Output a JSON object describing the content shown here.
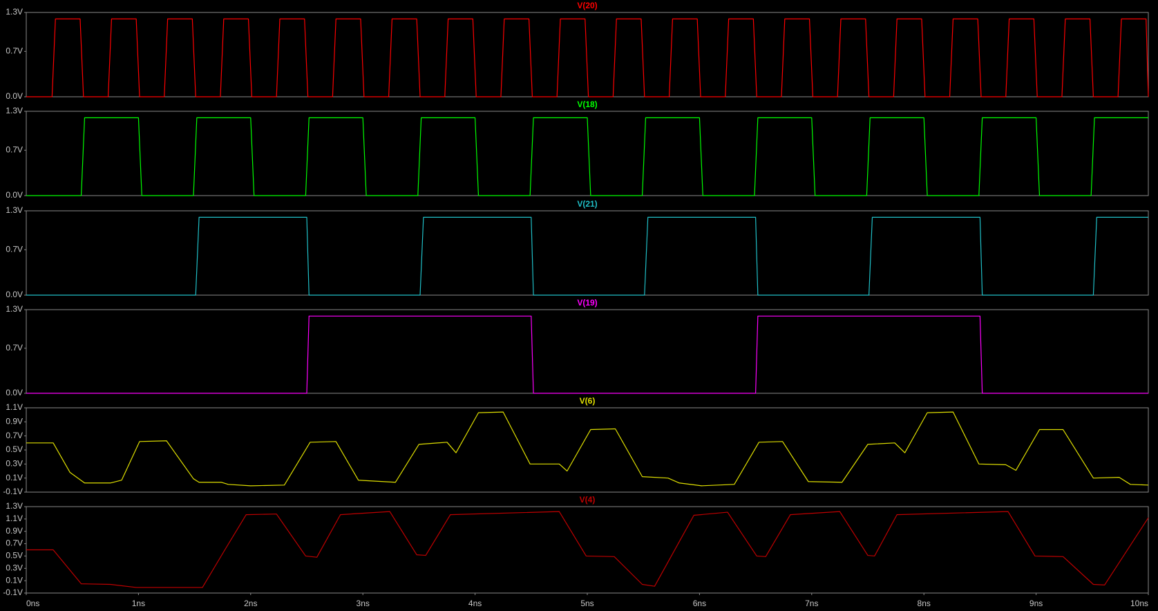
{
  "chart_data": [
    {
      "type": "line",
      "xlim": [
        0,
        10
      ],
      "ylim": [
        0,
        1.3
      ],
      "yticks": [
        {
          "value": 0,
          "label": "0.0V"
        },
        {
          "value": 0.7,
          "label": "0.7V"
        },
        {
          "value": 1.3,
          "label": "1.3V"
        }
      ],
      "x": [
        0,
        0.23,
        0.26,
        0.48,
        0.51,
        0.73,
        0.76,
        0.98,
        1.01,
        1.23,
        1.26,
        1.48,
        1.51,
        1.73,
        1.76,
        1.98,
        2.01,
        2.23,
        2.26,
        2.48,
        2.51,
        2.73,
        2.76,
        2.98,
        3.01,
        3.23,
        3.26,
        3.48,
        3.51,
        3.73,
        3.76,
        3.98,
        4.01,
        4.23,
        4.26,
        4.48,
        4.51,
        4.73,
        4.76,
        4.98,
        5.01,
        5.23,
        5.26,
        5.48,
        5.51,
        5.73,
        5.76,
        5.98,
        6.01,
        6.23,
        6.26,
        6.48,
        6.51,
        6.73,
        6.76,
        6.98,
        7.01,
        7.23,
        7.26,
        7.48,
        7.51,
        7.73,
        7.76,
        7.98,
        8.01,
        8.23,
        8.26,
        8.48,
        8.51,
        8.73,
        8.76,
        8.98,
        9.01,
        9.23,
        9.26,
        9.48,
        9.51,
        9.73,
        9.76,
        9.98,
        10
      ],
      "series": [
        {
          "name": "V(20)",
          "color": "#ff0000",
          "values": [
            0,
            0,
            1.2,
            1.2,
            0,
            0,
            1.2,
            1.2,
            0,
            0,
            1.2,
            1.2,
            0,
            0,
            1.2,
            1.2,
            0,
            0,
            1.2,
            1.2,
            0,
            0,
            1.2,
            1.2,
            0,
            0,
            1.2,
            1.2,
            0,
            0,
            1.2,
            1.2,
            0,
            0,
            1.2,
            1.2,
            0,
            0,
            1.2,
            1.2,
            0,
            0,
            1.2,
            1.2,
            0,
            0,
            1.2,
            1.2,
            0,
            0,
            1.2,
            1.2,
            0,
            0,
            1.2,
            1.2,
            0,
            0,
            1.2,
            1.2,
            0,
            0,
            1.2,
            1.2,
            0,
            0,
            1.2,
            1.2,
            0,
            0,
            1.2,
            1.2,
            0,
            0,
            1.2,
            1.2,
            0,
            0,
            1.2,
            1.2,
            0
          ]
        }
      ]
    },
    {
      "type": "line",
      "xlim": [
        0,
        10
      ],
      "ylim": [
        0,
        1.3
      ],
      "yticks": [
        {
          "value": 0,
          "label": "0.0V"
        },
        {
          "value": 0.7,
          "label": "0.7V"
        },
        {
          "value": 1.3,
          "label": "1.3V"
        }
      ],
      "x": [
        0,
        0.49,
        0.52,
        1.0,
        1.03,
        1.49,
        1.52,
        2.0,
        2.03,
        2.49,
        2.52,
        3.0,
        3.03,
        3.49,
        3.52,
        4.0,
        4.03,
        4.49,
        4.52,
        5.0,
        5.03,
        5.49,
        5.52,
        6.0,
        6.03,
        6.49,
        6.52,
        7.0,
        7.03,
        7.49,
        7.52,
        8.0,
        8.03,
        8.49,
        8.52,
        9.0,
        9.03,
        9.49,
        9.52,
        10
      ],
      "series": [
        {
          "name": "V(18)",
          "color": "#00ff00",
          "values": [
            0,
            0,
            1.2,
            1.2,
            0,
            0,
            1.2,
            1.2,
            0,
            0,
            1.2,
            1.2,
            0,
            0,
            1.2,
            1.2,
            0,
            0,
            1.2,
            1.2,
            0,
            0,
            1.2,
            1.2,
            0,
            0,
            1.2,
            1.2,
            0,
            0,
            1.2,
            1.2,
            0,
            0,
            1.2,
            1.2,
            0,
            0,
            1.2,
            1.2
          ]
        }
      ]
    },
    {
      "type": "line",
      "xlim": [
        0,
        10
      ],
      "ylim": [
        0,
        1.3
      ],
      "yticks": [
        {
          "value": 0,
          "label": "0.0V"
        },
        {
          "value": 0.7,
          "label": "0.7V"
        },
        {
          "value": 1.3,
          "label": "1.3V"
        }
      ],
      "x": [
        0,
        1.51,
        1.54,
        2.5,
        2.52,
        3.51,
        3.54,
        4.5,
        4.52,
        5.51,
        5.54,
        6.5,
        6.52,
        7.51,
        7.54,
        8.5,
        8.52,
        9.51,
        9.54,
        10
      ],
      "series": [
        {
          "name": "V(21)",
          "color": "#20c0c8",
          "values": [
            0,
            0,
            1.2,
            1.2,
            0,
            0,
            1.2,
            1.2,
            0,
            0,
            1.2,
            1.2,
            0,
            0,
            1.2,
            1.2,
            0,
            0,
            1.2,
            1.2
          ]
        }
      ]
    },
    {
      "type": "line",
      "xlim": [
        0,
        10
      ],
      "ylim": [
        0,
        1.3
      ],
      "yticks": [
        {
          "value": 0,
          "label": "0.0V"
        },
        {
          "value": 0.7,
          "label": "0.7V"
        },
        {
          "value": 1.3,
          "label": "1.3V"
        }
      ],
      "x": [
        0,
        2.5,
        2.52,
        4.5,
        4.52,
        6.5,
        6.52,
        8.5,
        8.52,
        10
      ],
      "series": [
        {
          "name": "V(19)",
          "color": "#ff00ff",
          "values": [
            0,
            0,
            1.2,
            1.2,
            0,
            0,
            1.2,
            1.2,
            0,
            0
          ]
        }
      ]
    },
    {
      "type": "line",
      "xlim": [
        0,
        10
      ],
      "ylim": [
        -0.1,
        1.1
      ],
      "yticks": [
        {
          "value": -0.1,
          "label": "-0.1V"
        },
        {
          "value": 0.1,
          "label": "0.1V"
        },
        {
          "value": 0.3,
          "label": "0.3V"
        },
        {
          "value": 0.5,
          "label": "0.5V"
        },
        {
          "value": 0.7,
          "label": "0.7V"
        },
        {
          "value": 0.9,
          "label": "0.9V"
        },
        {
          "value": 1.1,
          "label": "1.1V"
        }
      ],
      "x": [
        0,
        0.24,
        0.39,
        0.52,
        0.75,
        0.85,
        1.01,
        1.25,
        1.49,
        1.54,
        1.74,
        1.8,
        2.0,
        2.3,
        2.53,
        2.76,
        2.96,
        3.29,
        3.5,
        3.75,
        3.83,
        4.03,
        4.25,
        4.49,
        4.75,
        4.82,
        5.03,
        5.25,
        5.49,
        5.72,
        5.82,
        6.02,
        6.31,
        6.53,
        6.74,
        6.97,
        7.27,
        7.5,
        7.74,
        7.83,
        8.03,
        8.26,
        8.49,
        8.73,
        8.82,
        9.03,
        9.24,
        9.51,
        9.74,
        9.84,
        10
      ],
      "series": [
        {
          "name": "V(6)",
          "color": "#e0e000",
          "values": [
            0.6,
            0.6,
            0.18,
            0.03,
            0.03,
            0.07,
            0.62,
            0.63,
            0.09,
            0.04,
            0.04,
            0.01,
            -0.01,
            0.0,
            0.61,
            0.62,
            0.07,
            0.04,
            0.58,
            0.61,
            0.46,
            1.03,
            1.04,
            0.3,
            0.3,
            0.2,
            0.79,
            0.8,
            0.12,
            0.1,
            0.03,
            -0.01,
            0.01,
            0.61,
            0.62,
            0.05,
            0.04,
            0.58,
            0.6,
            0.46,
            1.03,
            1.04,
            0.3,
            0.29,
            0.21,
            0.79,
            0.79,
            0.1,
            0.11,
            0.01,
            0.0
          ]
        }
      ]
    },
    {
      "type": "line",
      "xlim": [
        0,
        10
      ],
      "ylim": [
        -0.1,
        1.3
      ],
      "yticks": [
        {
          "value": -0.1,
          "label": "-0.1V"
        },
        {
          "value": 0.1,
          "label": "0.1V"
        },
        {
          "value": 0.3,
          "label": "0.3V"
        },
        {
          "value": 0.5,
          "label": "0.5V"
        },
        {
          "value": 0.7,
          "label": "0.7V"
        },
        {
          "value": 0.9,
          "label": "0.9V"
        },
        {
          "value": 1.1,
          "label": "1.1V"
        },
        {
          "value": 1.3,
          "label": "1.3V"
        }
      ],
      "xticks": [
        {
          "value": 0,
          "label": "0ns"
        },
        {
          "value": 1,
          "label": "1ns"
        },
        {
          "value": 2,
          "label": "2ns"
        },
        {
          "value": 3,
          "label": "3ns"
        },
        {
          "value": 4,
          "label": "4ns"
        },
        {
          "value": 5,
          "label": "5ns"
        },
        {
          "value": 6,
          "label": "6ns"
        },
        {
          "value": 7,
          "label": "7ns"
        },
        {
          "value": 8,
          "label": "8ns"
        },
        {
          "value": 9,
          "label": "9ns"
        },
        {
          "value": 10,
          "label": "10ns"
        }
      ],
      "x": [
        0,
        0.24,
        0.49,
        0.75,
        0.98,
        1.57,
        1.77,
        1.96,
        2.23,
        2.49,
        2.59,
        2.8,
        3.24,
        3.48,
        3.56,
        3.78,
        4.75,
        4.99,
        5.24,
        5.49,
        5.6,
        5.95,
        6.25,
        6.51,
        6.59,
        6.81,
        7.25,
        7.5,
        7.56,
        7.76,
        8.75,
        8.99,
        9.24,
        9.51,
        9.61,
        10
      ],
      "series": [
        {
          "name": "V(4)",
          "color": "#c00000",
          "values": [
            0.6,
            0.6,
            0.05,
            0.04,
            -0.01,
            -0.01,
            0.6,
            1.17,
            1.18,
            0.5,
            0.48,
            1.17,
            1.22,
            0.52,
            0.51,
            1.17,
            1.22,
            0.5,
            0.49,
            0.04,
            0.01,
            1.16,
            1.21,
            0.5,
            0.49,
            1.17,
            1.22,
            0.51,
            0.5,
            1.17,
            1.22,
            0.5,
            0.49,
            0.04,
            0.03,
            1.12
          ]
        }
      ]
    }
  ]
}
